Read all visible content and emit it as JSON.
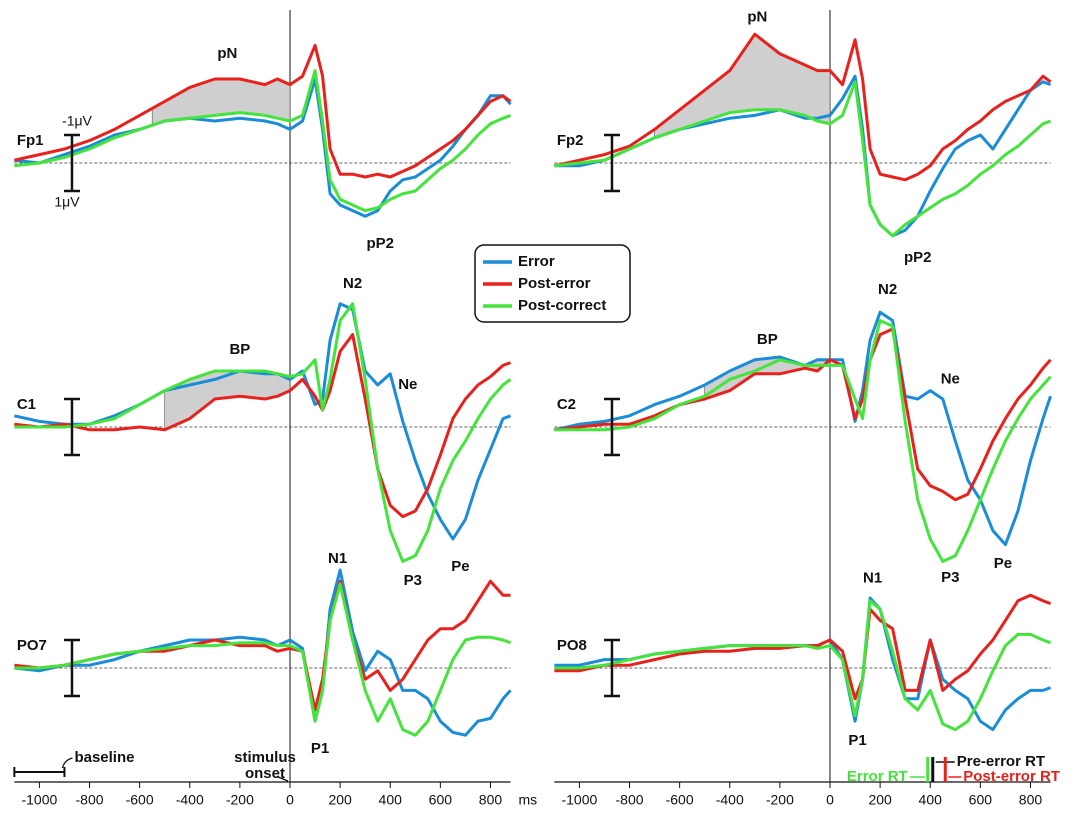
{
  "chart_data": [
    {
      "type": "line",
      "title": "Fp1",
      "y_inverted": true,
      "xlim": [
        -1100,
        880
      ],
      "ylim": [
        -5.5,
        3.5
      ],
      "x": [
        -1100,
        -1000,
        -900,
        -800,
        -700,
        -600,
        -500,
        -400,
        -300,
        -200,
        -100,
        -50,
        0,
        50,
        100,
        130,
        160,
        200,
        250,
        300,
        350,
        400,
        450,
        500,
        550,
        600,
        650,
        700,
        750,
        800,
        850,
        880
      ],
      "series": [
        {
          "name": "Error",
          "color": "#1a8cd8",
          "values": [
            -0.1,
            0,
            -0.3,
            -0.6,
            -1.0,
            -1.2,
            -1.5,
            -1.6,
            -1.5,
            -1.6,
            -1.5,
            -1.4,
            -1.2,
            -1.5,
            -3.0,
            -1.2,
            1.1,
            1.5,
            1.7,
            1.9,
            1.7,
            1.0,
            0.6,
            0.5,
            0.2,
            -0.1,
            -0.6,
            -1.2,
            -1.7,
            -2.4,
            -2.4,
            -2.1
          ]
        },
        {
          "name": "Post-error",
          "color": "#e8211d",
          "values": [
            -0.1,
            -0.3,
            -0.5,
            -0.8,
            -1.2,
            -1.7,
            -2.2,
            -2.7,
            -3.0,
            -3.0,
            -2.8,
            -3.0,
            -2.8,
            -3.1,
            -4.2,
            -3.1,
            -0.5,
            0.4,
            0.4,
            0.5,
            0.4,
            0.5,
            0.3,
            0.1,
            -0.2,
            -0.5,
            -0.8,
            -1.2,
            -1.7,
            -2.2,
            -2.4,
            -2.2
          ]
        },
        {
          "name": "Post-correct",
          "color": "#45e43c",
          "values": [
            0.1,
            0,
            -0.2,
            -0.5,
            -0.9,
            -1.2,
            -1.5,
            -1.6,
            -1.7,
            -1.8,
            -1.7,
            -1.6,
            -1.5,
            -1.7,
            -3.3,
            -1.5,
            0.6,
            1.3,
            1.5,
            1.7,
            1.6,
            1.3,
            1.1,
            1.0,
            0.6,
            0.2,
            -0.1,
            -0.5,
            -1.0,
            -1.4,
            -1.6,
            -1.7
          ]
        }
      ],
      "shade": {
        "from": -550,
        "to": 0,
        "between": [
          1,
          2
        ]
      },
      "scale_bar": [
        -1,
        1
      ],
      "scale_labels": [
        "-1μV",
        "1μV"
      ],
      "annotations": [
        {
          "text": "pN",
          "x": -250,
          "y": -3.9
        },
        {
          "text": "pP2",
          "x": 360,
          "y": 2.9
        }
      ]
    },
    {
      "type": "line",
      "title": "Fp2",
      "y_inverted": true,
      "xlim": [
        -1100,
        880
      ],
      "ylim": [
        -5.5,
        3.5
      ],
      "x": [
        -1100,
        -1000,
        -900,
        -800,
        -700,
        -600,
        -500,
        -400,
        -300,
        -200,
        -100,
        -50,
        0,
        50,
        100,
        130,
        160,
        200,
        250,
        300,
        350,
        400,
        450,
        500,
        550,
        600,
        650,
        700,
        750,
        800,
        850,
        880
      ],
      "series": [
        {
          "name": "Error",
          "color": "#1a8cd8",
          "values": [
            0.1,
            0.1,
            -0.1,
            -0.5,
            -0.9,
            -1.2,
            -1.4,
            -1.6,
            -1.7,
            -1.9,
            -1.6,
            -1.6,
            -1.7,
            -2.3,
            -3.1,
            -1.2,
            1.5,
            2.2,
            2.6,
            2.4,
            1.9,
            1.0,
            0.2,
            -0.5,
            -0.8,
            -1.0,
            -0.5,
            -1.2,
            -1.9,
            -2.6,
            -2.9,
            -2.8
          ]
        },
        {
          "name": "Post-error",
          "color": "#e8211d",
          "values": [
            0.1,
            -0.1,
            -0.3,
            -0.6,
            -1.2,
            -1.9,
            -2.6,
            -3.3,
            -4.6,
            -3.9,
            -3.5,
            -3.3,
            -3.3,
            -2.8,
            -4.4,
            -3.0,
            -0.5,
            0.4,
            0.5,
            0.6,
            0.4,
            0.1,
            -0.5,
            -0.8,
            -1.2,
            -1.5,
            -1.9,
            -2.2,
            -2.4,
            -2.6,
            -3.1,
            -2.9
          ]
        },
        {
          "name": "Post-correct",
          "color": "#45e43c",
          "values": [
            0.1,
            0,
            -0.1,
            -0.5,
            -0.9,
            -1.2,
            -1.5,
            -1.8,
            -1.9,
            -1.9,
            -1.7,
            -1.5,
            -1.4,
            -1.7,
            -2.9,
            -0.8,
            1.5,
            2.2,
            2.6,
            2.2,
            1.9,
            1.6,
            1.3,
            1.1,
            0.8,
            0.4,
            0.1,
            -0.3,
            -0.6,
            -1.0,
            -1.4,
            -1.5
          ]
        }
      ],
      "shade": {
        "from": -700,
        "to": 0,
        "between": [
          1,
          2
        ]
      },
      "scale_bar": [
        -1,
        1
      ],
      "annotations": [
        {
          "text": "pN",
          "x": -290,
          "y": -5.2
        },
        {
          "text": "pP2",
          "x": 350,
          "y": 3.4
        }
      ]
    },
    {
      "type": "line",
      "title": "C1",
      "y_inverted": true,
      "xlim": [
        -1100,
        880
      ],
      "ylim": [
        -5,
        5
      ],
      "x": [
        -1100,
        -1000,
        -900,
        -800,
        -700,
        -600,
        -500,
        -400,
        -300,
        -200,
        -100,
        -50,
        0,
        50,
        100,
        130,
        160,
        200,
        250,
        300,
        350,
        400,
        450,
        500,
        550,
        600,
        650,
        700,
        750,
        800,
        850,
        880
      ],
      "series": [
        {
          "name": "Error",
          "color": "#1a8cd8",
          "values": [
            -0.4,
            -0.2,
            -0.1,
            -0.1,
            -0.4,
            -0.8,
            -1.3,
            -1.5,
            -1.7,
            -2.0,
            -1.9,
            -1.9,
            -1.7,
            -2.0,
            -0.8,
            -1.0,
            -3.1,
            -4.4,
            -4.2,
            -2.0,
            -1.5,
            -1.9,
            -0.2,
            1.2,
            2.4,
            3.3,
            4.0,
            3.3,
            1.9,
            0.8,
            -0.3,
            -0.4
          ]
        },
        {
          "name": "Post-error",
          "color": "#e8211d",
          "values": [
            -0.1,
            0,
            -0.1,
            0.1,
            0.1,
            0,
            0.1,
            -0.3,
            -1.0,
            -1.1,
            -1.0,
            -1.1,
            -1.3,
            -1.7,
            -1.1,
            -0.6,
            -1.3,
            -2.7,
            -3.3,
            -1.0,
            1.5,
            2.8,
            3.2,
            3.0,
            2.2,
            1.0,
            -0.3,
            -1.0,
            -1.5,
            -1.8,
            -2.2,
            -2.3
          ]
        },
        {
          "name": "Post-correct",
          "color": "#45e43c",
          "values": [
            0,
            0,
            0,
            -0.1,
            -0.3,
            -0.8,
            -1.3,
            -1.7,
            -2.0,
            -2.0,
            -2.0,
            -1.9,
            -1.8,
            -1.9,
            -2.4,
            -0.6,
            -1.7,
            -3.8,
            -4.4,
            -1.7,
            1.5,
            3.7,
            4.8,
            4.6,
            3.7,
            2.2,
            1.2,
            0.5,
            -0.3,
            -1.0,
            -1.5,
            -1.7
          ]
        }
      ],
      "shade": {
        "from": -500,
        "to": 0,
        "between": [
          1,
          2
        ]
      },
      "scale_bar": [
        -1,
        1
      ],
      "annotations": [
        {
          "text": "BP",
          "x": -200,
          "y": -2.75
        },
        {
          "text": "N2",
          "x": 250,
          "y": -5.1
        },
        {
          "text": "Ne",
          "x": 470,
          "y": -1.5
        },
        {
          "text": "P3",
          "x": 490,
          "y": 5.5
        },
        {
          "text": "Pe",
          "x": 680,
          "y": 5.0
        }
      ]
    },
    {
      "type": "line",
      "title": "C2",
      "y_inverted": true,
      "xlim": [
        -1100,
        880
      ],
      "ylim": [
        -5,
        5
      ],
      "x": [
        -1100,
        -1000,
        -900,
        -800,
        -700,
        -600,
        -500,
        -400,
        -300,
        -200,
        -100,
        -50,
        0,
        50,
        100,
        130,
        160,
        200,
        250,
        300,
        350,
        400,
        450,
        500,
        550,
        600,
        650,
        700,
        750,
        800,
        850,
        880
      ],
      "series": [
        {
          "name": "Error",
          "color": "#1a8cd8",
          "values": [
            0.1,
            -0.1,
            -0.2,
            -0.4,
            -0.8,
            -1.1,
            -1.5,
            -2.0,
            -2.4,
            -2.5,
            -2.2,
            -2.4,
            -2.4,
            -2.4,
            -0.2,
            -1.3,
            -3.1,
            -4.1,
            -3.8,
            -1.1,
            -1.0,
            -1.3,
            -1.0,
            0.5,
            1.9,
            2.6,
            3.7,
            4.2,
            3.0,
            1.2,
            -0.3,
            -1.1
          ]
        },
        {
          "name": "Post-error",
          "color": "#e8211d",
          "values": [
            0.1,
            0,
            -0.1,
            -0.1,
            -0.4,
            -0.8,
            -1.0,
            -1.3,
            -1.9,
            -1.9,
            -2.1,
            -2.0,
            -2.4,
            -2.2,
            -0.3,
            -1.0,
            -2.4,
            -3.3,
            -3.5,
            -1.0,
            1.5,
            2.1,
            2.3,
            2.6,
            2.4,
            1.5,
            0.5,
            -0.3,
            -1.0,
            -1.5,
            -2.1,
            -2.4
          ]
        },
        {
          "name": "Post-correct",
          "color": "#45e43c",
          "values": [
            0.1,
            0.1,
            0.1,
            0,
            -0.3,
            -0.8,
            -1.1,
            -1.7,
            -2.0,
            -2.4,
            -2.2,
            -2.2,
            -2.2,
            -2.2,
            -1.0,
            -0.3,
            -2.4,
            -3.8,
            -3.6,
            -0.2,
            2.6,
            4.0,
            4.8,
            4.6,
            3.7,
            2.6,
            1.5,
            0.5,
            -0.3,
            -1.0,
            -1.5,
            -1.8
          ]
        }
      ],
      "shade": {
        "from": -500,
        "to": 0,
        "between": [
          1,
          0
        ]
      },
      "scale_bar": [
        -1,
        1
      ],
      "annotations": [
        {
          "text": "BP",
          "x": -250,
          "y": -3.1
        },
        {
          "text": "N2",
          "x": 230,
          "y": -4.9
        },
        {
          "text": "Ne",
          "x": 480,
          "y": -1.7
        },
        {
          "text": "P3",
          "x": 480,
          "y": 5.4
        },
        {
          "text": "Pe",
          "x": 690,
          "y": 4.9
        }
      ]
    },
    {
      "type": "line",
      "title": "PO7",
      "y_inverted": true,
      "xlim": [
        -1100,
        880
      ],
      "ylim": [
        -4,
        3.5
      ],
      "x": [
        -1100,
        -1000,
        -900,
        -800,
        -700,
        -600,
        -500,
        -400,
        -300,
        -200,
        -100,
        -50,
        0,
        50,
        100,
        130,
        160,
        200,
        250,
        300,
        350,
        400,
        450,
        500,
        550,
        600,
        650,
        700,
        750,
        800,
        850,
        880
      ],
      "series": [
        {
          "name": "Error",
          "color": "#1a8cd8",
          "values": [
            0,
            0.1,
            -0.1,
            -0.1,
            -0.3,
            -0.6,
            -0.8,
            -1.0,
            -1.0,
            -1.1,
            -1.0,
            -0.8,
            -1.0,
            -0.7,
            1.9,
            0.8,
            -2.1,
            -3.5,
            -1.3,
            0.1,
            -0.6,
            -0.3,
            0.8,
            0.8,
            1.1,
            1.9,
            2.3,
            2.4,
            1.9,
            1.8,
            1.1,
            0.8
          ]
        },
        {
          "name": "Post-error",
          "color": "#e8211d",
          "values": [
            -0.1,
            0,
            -0.1,
            -0.3,
            -0.5,
            -0.6,
            -0.6,
            -0.8,
            -1.0,
            -0.8,
            -0.8,
            -0.6,
            -0.7,
            -0.6,
            1.5,
            0.4,
            -1.7,
            -3.1,
            -1.0,
            0.4,
            0.1,
            0.8,
            0.4,
            -0.3,
            -1.0,
            -1.4,
            -1.4,
            -1.7,
            -2.4,
            -3.1,
            -2.6,
            -2.6
          ]
        },
        {
          "name": "Post-correct",
          "color": "#45e43c",
          "values": [
            0,
            0,
            -0.1,
            -0.3,
            -0.5,
            -0.6,
            -0.7,
            -0.8,
            -0.8,
            -0.9,
            -0.9,
            -0.8,
            -0.8,
            -0.6,
            1.9,
            0.8,
            -1.7,
            -3.0,
            -1.0,
            0.8,
            1.9,
            1.1,
            2.2,
            2.4,
            1.9,
            0.8,
            -0.3,
            -1.0,
            -1.1,
            -1.1,
            -1.0,
            -0.9
          ]
        }
      ],
      "scale_bar": [
        -1,
        1
      ],
      "annotations": [
        {
          "text": "N1",
          "x": 190,
          "y": -3.9
        },
        {
          "text": "P1",
          "x": 120,
          "y": 2.9
        }
      ],
      "xticks": [
        -1000,
        -800,
        -600,
        -400,
        -200,
        0,
        200,
        400,
        600,
        800
      ],
      "x_unit": "ms",
      "baseline": {
        "label": "baseline",
        "from": -1100,
        "to": -900
      },
      "onset_label": [
        "stimulus",
        "onset"
      ]
    },
    {
      "type": "line",
      "title": "PO8",
      "y_inverted": true,
      "xlim": [
        -1100,
        880
      ],
      "ylim": [
        -4,
        3.5
      ],
      "x": [
        -1100,
        -1000,
        -900,
        -800,
        -700,
        -600,
        -500,
        -400,
        -300,
        -200,
        -100,
        -50,
        0,
        50,
        100,
        130,
        160,
        200,
        250,
        300,
        350,
        400,
        450,
        500,
        550,
        600,
        650,
        700,
        750,
        800,
        850,
        880
      ],
      "series": [
        {
          "name": "Error",
          "color": "#1a8cd8",
          "values": [
            -0.1,
            -0.1,
            -0.3,
            -0.3,
            -0.5,
            -0.6,
            -0.7,
            -0.8,
            -0.8,
            -0.8,
            -0.8,
            -0.8,
            -1.0,
            -0.3,
            1.9,
            0.4,
            -2.5,
            -2.1,
            -0.3,
            1.1,
            1.1,
            -1.0,
            0.4,
            0.8,
            1.1,
            1.9,
            2.2,
            1.5,
            1.1,
            0.8,
            0.8,
            0.7
          ]
        },
        {
          "name": "Post-error",
          "color": "#e8211d",
          "values": [
            0.1,
            0.1,
            -0.1,
            -0.1,
            -0.3,
            -0.5,
            -0.6,
            -0.6,
            -0.7,
            -0.7,
            -0.8,
            -0.8,
            -1.0,
            -0.6,
            1.1,
            0.4,
            -2.1,
            -1.7,
            -1.4,
            0.8,
            0.8,
            -1.0,
            0.8,
            0.4,
            0.1,
            -0.5,
            -1.0,
            -1.7,
            -2.4,
            -2.6,
            -2.4,
            -2.3
          ]
        },
        {
          "name": "Post-correct",
          "color": "#45e43c",
          "values": [
            0,
            0,
            -0.1,
            -0.3,
            -0.5,
            -0.6,
            -0.7,
            -0.8,
            -0.8,
            -0.8,
            -0.8,
            -0.7,
            -0.8,
            -0.3,
            1.7,
            0.4,
            -2.4,
            -2.1,
            -0.6,
            1.1,
            1.5,
            0.8,
            2.0,
            2.2,
            1.9,
            1.1,
            0.1,
            -0.8,
            -1.2,
            -1.2,
            -1.0,
            -0.9
          ]
        }
      ],
      "scale_bar": [
        -1,
        1
      ],
      "annotations": [
        {
          "text": "N1",
          "x": 170,
          "y": -3.2
        },
        {
          "text": "P1",
          "x": 110,
          "y": 2.6
        }
      ],
      "xticks": [
        -1000,
        -800,
        -600,
        -400,
        -200,
        0,
        200,
        400,
        600,
        800
      ],
      "rt_markers": [
        {
          "label": "Error RT",
          "x": 390,
          "color": "#45e43c"
        },
        {
          "label": "Pre-error RT",
          "x": 410,
          "color": "#111111"
        },
        {
          "label": "Post-error RT",
          "x": 460,
          "color": "#e8211d"
        }
      ]
    }
  ]
}
